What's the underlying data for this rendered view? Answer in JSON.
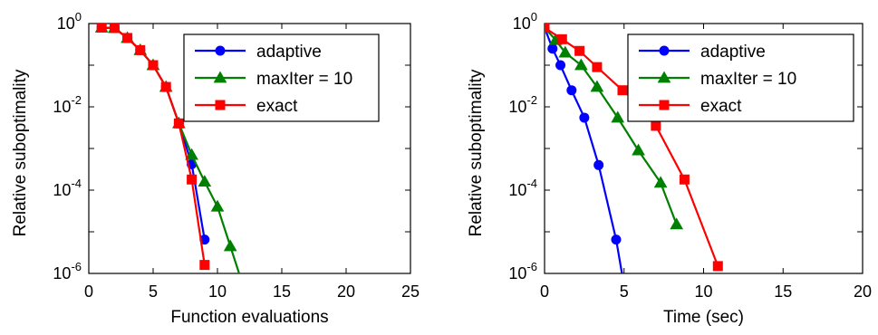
{
  "chart_data": [
    {
      "type": "line",
      "xlabel": "Function evaluations",
      "ylabel": "Relative suboptimality",
      "xlim": [
        0,
        25
      ],
      "xticks": [
        0,
        5,
        10,
        15,
        20,
        25
      ],
      "ylim": [
        1e-06,
        1
      ],
      "yscale": "log",
      "yticks": [
        {
          "value": 1,
          "base": "10",
          "exp": "0"
        },
        {
          "value": 0.01,
          "base": "10",
          "exp": "-2"
        },
        {
          "value": 0.0001,
          "base": "10",
          "exp": "-4"
        },
        {
          "value": 1e-06,
          "base": "10",
          "exp": "-6"
        }
      ],
      "legend_position": "top-right",
      "series": [
        {
          "name": "adaptive",
          "color": "#0000ff",
          "marker": "circle",
          "x": [
            1,
            2,
            3,
            4,
            5,
            6,
            7,
            8,
            9
          ],
          "y": [
            0.8,
            0.78,
            0.45,
            0.23,
            0.1,
            0.03,
            0.004,
            0.00042,
            6.5e-06
          ]
        },
        {
          "name": "maxIter = 10",
          "color": "#008000",
          "marker": "triangle",
          "x": [
            1,
            2,
            3,
            4,
            5,
            6,
            7,
            8,
            9,
            10,
            11,
            12
          ],
          "y": [
            0.8,
            0.78,
            0.45,
            0.23,
            0.1,
            0.03,
            0.004,
            0.0007,
            0.00016,
            4e-05,
            4.5e-06,
            5e-07
          ]
        },
        {
          "name": "exact",
          "color": "#ff0000",
          "marker": "square",
          "x": [
            1,
            2,
            3,
            4,
            5,
            6,
            7,
            8,
            9
          ],
          "y": [
            0.8,
            0.78,
            0.45,
            0.23,
            0.1,
            0.03,
            0.004,
            0.00018,
            1.6e-06
          ]
        }
      ]
    },
    {
      "type": "line",
      "xlabel": "Time (sec)",
      "ylabel": "Relative suboptimality",
      "xlim": [
        0,
        20
      ],
      "xticks": [
        0,
        5,
        10,
        15,
        20
      ],
      "ylim": [
        1e-06,
        1
      ],
      "yscale": "log",
      "yticks": [
        {
          "value": 1,
          "base": "10",
          "exp": "0"
        },
        {
          "value": 0.01,
          "base": "10",
          "exp": "-2"
        },
        {
          "value": 0.0001,
          "base": "10",
          "exp": "-4"
        },
        {
          "value": 1e-06,
          "base": "10",
          "exp": "-6"
        }
      ],
      "legend_position": "top-right",
      "series": [
        {
          "name": "adaptive",
          "color": "#0000ff",
          "marker": "circle",
          "x": [
            0,
            0.5,
            1.0,
            1.7,
            2.5,
            3.4,
            4.5,
            5.0
          ],
          "y": [
            0.8,
            0.25,
            0.1,
            0.025,
            0.0055,
            0.0004,
            6.5e-06,
            5e-07
          ]
        },
        {
          "name": "maxIter = 10",
          "color": "#008000",
          "marker": "triangle",
          "x": [
            0,
            0.7,
            1.3,
            2.3,
            3.3,
            4.6,
            5.9,
            7.3,
            8.3
          ],
          "y": [
            0.8,
            0.4,
            0.2,
            0.1,
            0.03,
            0.0055,
            0.0009,
            0.00015,
            1.5e-05
          ]
        },
        {
          "name": "exact",
          "color": "#ff0000",
          "marker": "square",
          "x": [
            0,
            1.1,
            2.2,
            3.3,
            4.9,
            6.6,
            7.0,
            8.8,
            10.9
          ],
          "y": [
            0.8,
            0.42,
            0.22,
            0.09,
            0.025,
            0.007,
            0.0035,
            0.00018,
            1.5e-06
          ]
        }
      ]
    }
  ]
}
